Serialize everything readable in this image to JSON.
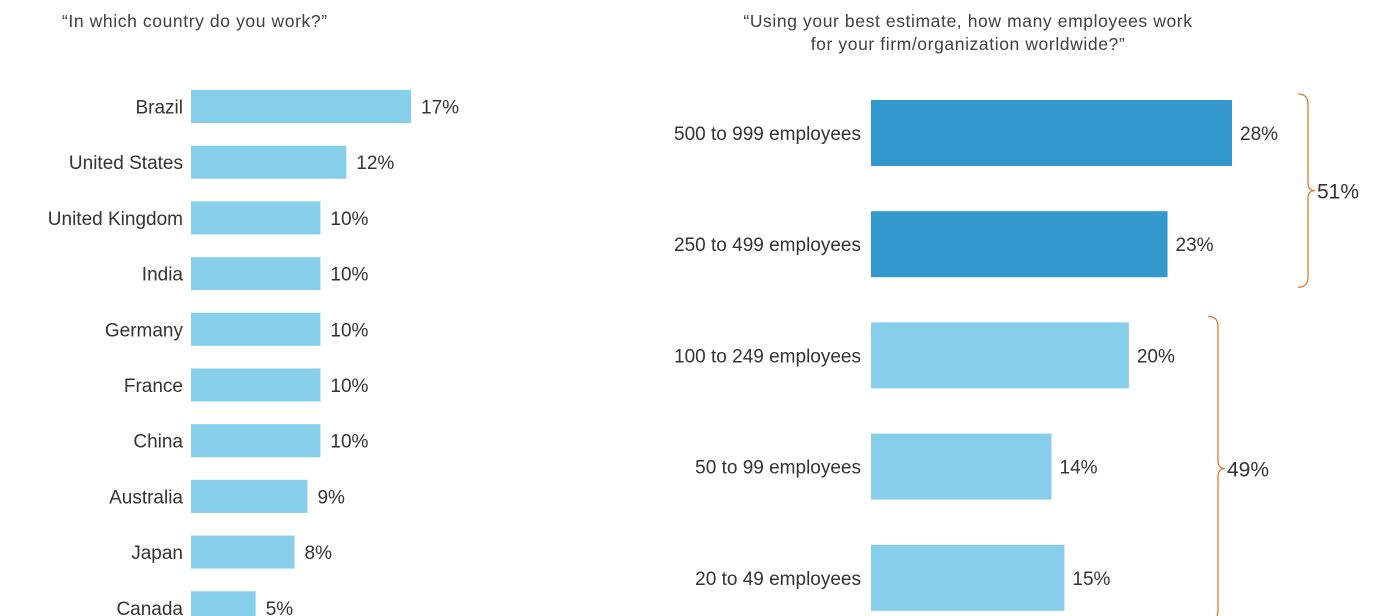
{
  "chart_data": [
    {
      "type": "bar",
      "orientation": "horizontal",
      "title": "“In which country do you work?”",
      "categories": [
        "Brazil",
        "United States",
        "United Kingdom",
        "India",
        "Germany",
        "France",
        "China",
        "Australia",
        "Japan",
        "Canada"
      ],
      "values": [
        17,
        12,
        10,
        10,
        10,
        10,
        10,
        9,
        8,
        5
      ],
      "value_labels": [
        "17%",
        "12%",
        "10%",
        "10%",
        "10%",
        "10%",
        "10%",
        "9%",
        "8%",
        "5%"
      ],
      "unit": "%",
      "color": "#87CEEB",
      "grid": false
    },
    {
      "type": "bar",
      "orientation": "horizontal",
      "title": "“Using your best estimate, how many employees work\nfor your firm/organization worldwide?”",
      "categories": [
        "500 to 999 employees",
        "250 to 499 employees",
        "100 to 249 employees",
        "50 to 99 employees",
        "20 to 49 employees"
      ],
      "values": [
        28,
        23,
        20,
        14,
        15
      ],
      "value_labels": [
        "28%",
        "23%",
        "20%",
        "14%",
        "15%"
      ],
      "unit": "%",
      "bar_colors": [
        "#3399CC",
        "#3399CC",
        "#87CEEB",
        "#87CEEB",
        "#87CEEB"
      ],
      "groups": [
        {
          "label": "51%",
          "members": [
            "500 to 999 employees",
            "250 to 499 employees"
          ]
        },
        {
          "label": "49%",
          "members": [
            "100 to 249 employees",
            "50 to 99 employees",
            "20 to 49 employees"
          ]
        }
      ],
      "bracket_color": "#E07B39",
      "grid": false
    }
  ]
}
